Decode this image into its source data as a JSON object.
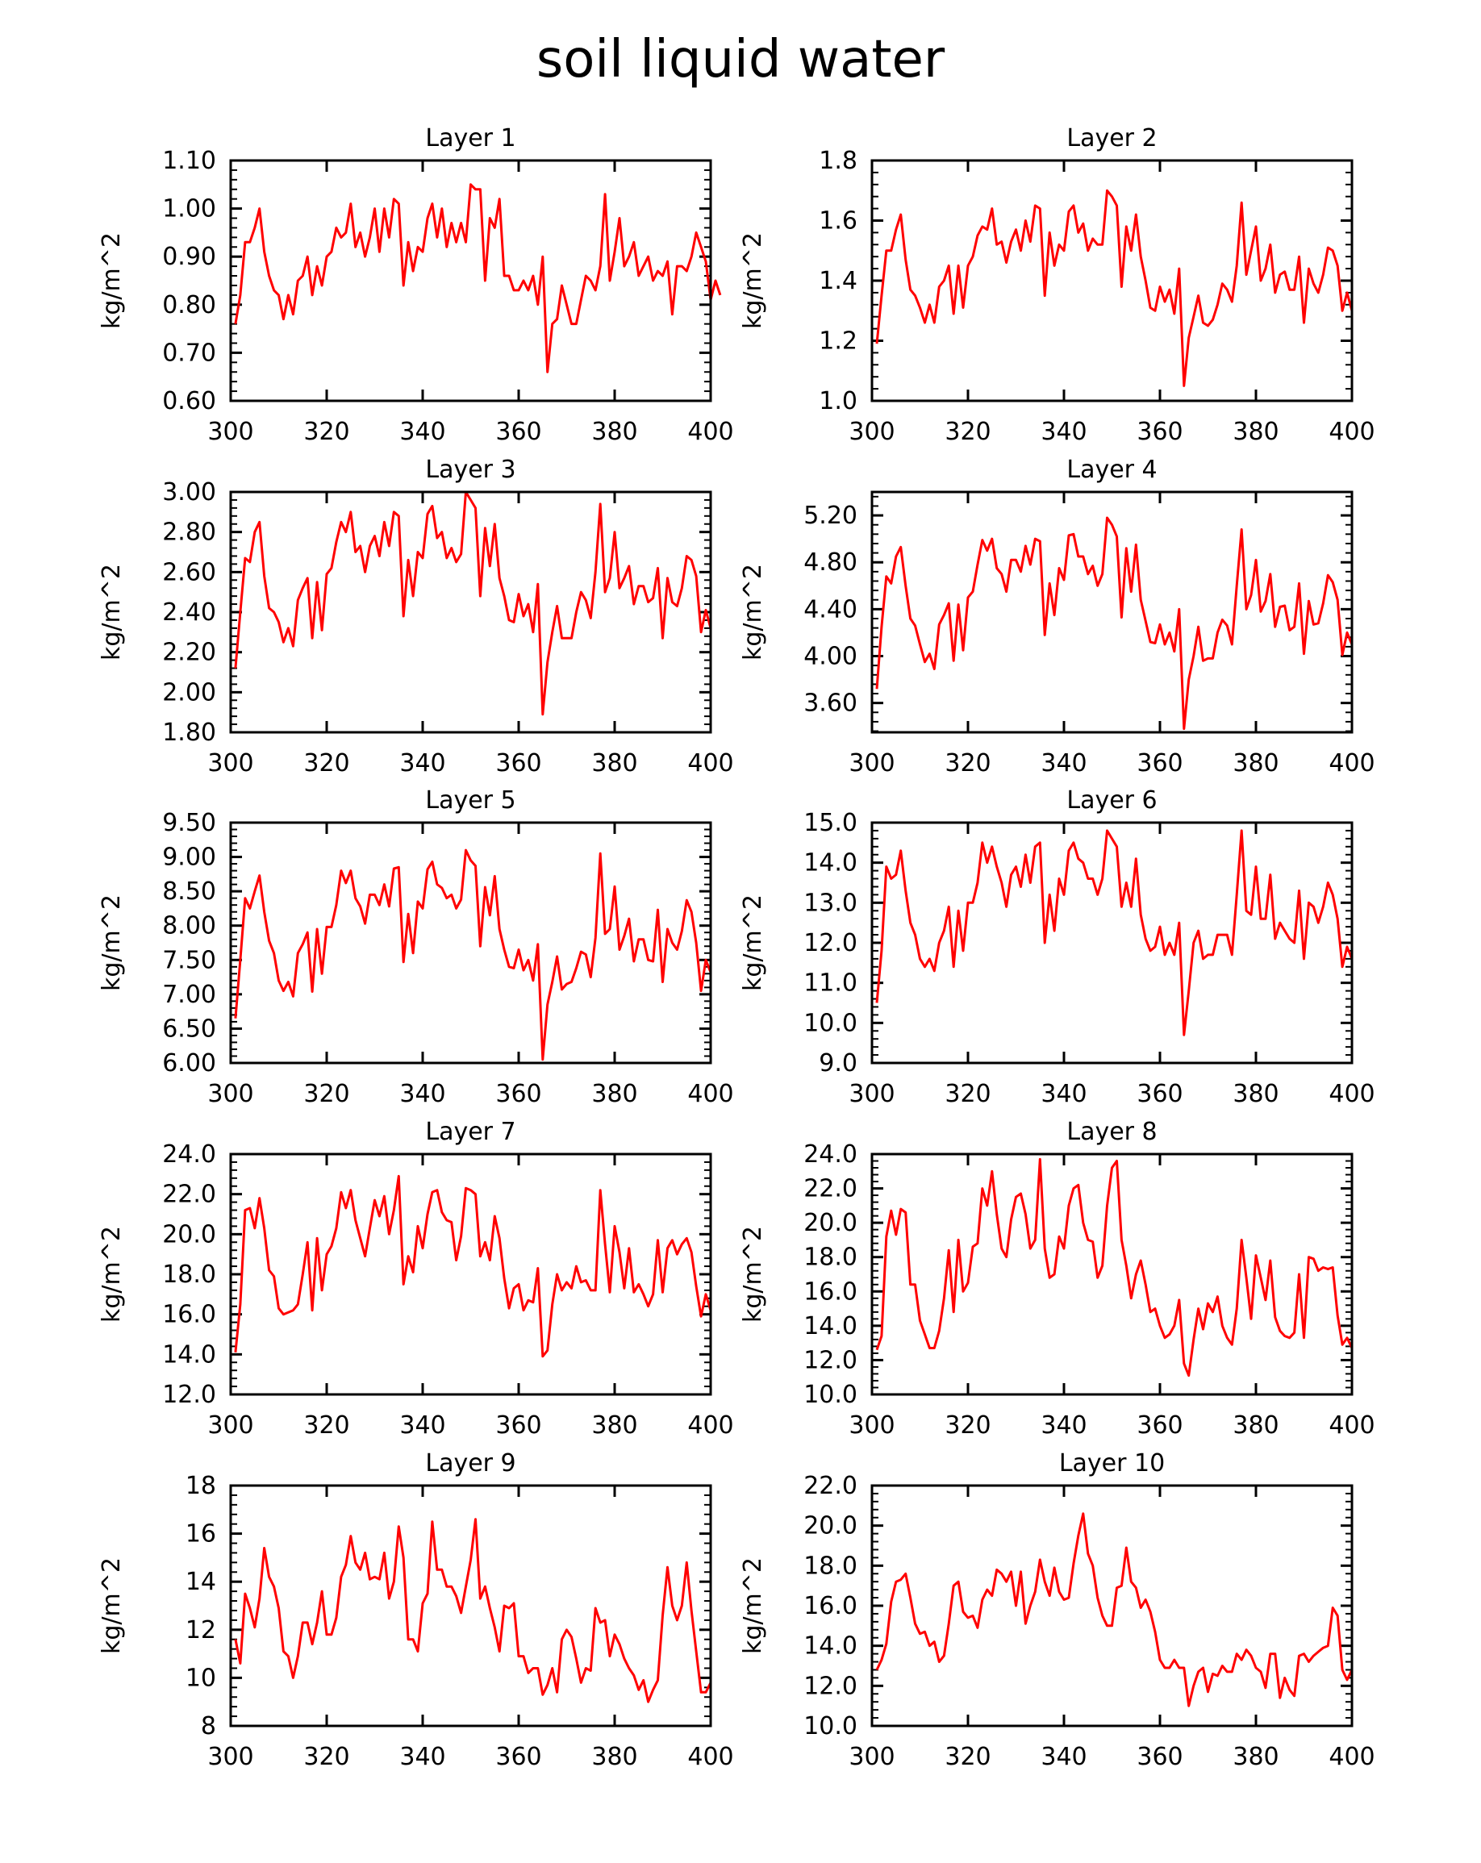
{
  "title": "soil liquid water",
  "colors": {
    "line": "#ff0000",
    "axis": "#000000",
    "background": "#ffffff"
  },
  "chart_data": [
    {
      "type": "line",
      "title": "Layer 1",
      "ylabel": "kg/m^2",
      "xlim": [
        300,
        400
      ],
      "ylim": [
        0.6,
        1.1
      ],
      "xticks": [
        "300",
        "320",
        "340",
        "360",
        "380",
        "400"
      ],
      "yticks": [
        "0.60",
        "0.70",
        "0.80",
        "0.90",
        "1.00",
        "1.10"
      ],
      "x_start": 301,
      "values": [
        0.76,
        0.82,
        0.93,
        0.93,
        0.96,
        1.0,
        0.91,
        0.86,
        0.83,
        0.82,
        0.77,
        0.82,
        0.78,
        0.85,
        0.86,
        0.9,
        0.82,
        0.88,
        0.84,
        0.9,
        0.91,
        0.96,
        0.94,
        0.95,
        1.01,
        0.92,
        0.95,
        0.9,
        0.94,
        1.0,
        0.91,
        1.0,
        0.94,
        1.02,
        1.01,
        0.84,
        0.93,
        0.87,
        0.92,
        0.91,
        0.98,
        1.01,
        0.94,
        1.0,
        0.92,
        0.97,
        0.93,
        0.97,
        0.93,
        1.05,
        1.04,
        1.04,
        0.85,
        0.98,
        0.96,
        1.02,
        0.86,
        0.86,
        0.83,
        0.83,
        0.85,
        0.83,
        0.86,
        0.8,
        0.9,
        0.66,
        0.76,
        0.77,
        0.84,
        0.8,
        0.76,
        0.76,
        0.81,
        0.86,
        0.85,
        0.83,
        0.88,
        1.03,
        0.85,
        0.91,
        0.98,
        0.88,
        0.9,
        0.93,
        0.86,
        0.88,
        0.9,
        0.85,
        0.87,
        0.86,
        0.89,
        0.78,
        0.88,
        0.88,
        0.87,
        0.9,
        0.95,
        0.92,
        0.89,
        0.81,
        0.85,
        0.82
      ]
    },
    {
      "type": "line",
      "title": "Layer 2",
      "ylabel": "kg/m^2",
      "xlim": [
        300,
        400
      ],
      "ylim": [
        1.0,
        1.8
      ],
      "xticks": [
        "300",
        "320",
        "340",
        "360",
        "380",
        "400"
      ],
      "yticks": [
        "1.0",
        "1.2",
        "1.4",
        "1.6",
        "1.8"
      ],
      "x_start": 301,
      "values": [
        1.19,
        1.35,
        1.5,
        1.5,
        1.57,
        1.62,
        1.47,
        1.37,
        1.35,
        1.31,
        1.26,
        1.32,
        1.26,
        1.38,
        1.4,
        1.45,
        1.29,
        1.45,
        1.31,
        1.45,
        1.48,
        1.55,
        1.58,
        1.57,
        1.64,
        1.52,
        1.53,
        1.46,
        1.53,
        1.57,
        1.5,
        1.6,
        1.53,
        1.65,
        1.64,
        1.35,
        1.56,
        1.45,
        1.52,
        1.5,
        1.63,
        1.65,
        1.56,
        1.59,
        1.5,
        1.54,
        1.52,
        1.52,
        1.7,
        1.68,
        1.65,
        1.38,
        1.58,
        1.5,
        1.62,
        1.48,
        1.4,
        1.31,
        1.3,
        1.38,
        1.33,
        1.37,
        1.29,
        1.44,
        1.05,
        1.21,
        1.28,
        1.35,
        1.26,
        1.25,
        1.27,
        1.32,
        1.39,
        1.37,
        1.33,
        1.45,
        1.66,
        1.42,
        1.5,
        1.58,
        1.4,
        1.44,
        1.52,
        1.36,
        1.42,
        1.43,
        1.37,
        1.37,
        1.48,
        1.26,
        1.44,
        1.39,
        1.36,
        1.42,
        1.51,
        1.5,
        1.45,
        1.3,
        1.36,
        1.3
      ]
    },
    {
      "type": "line",
      "title": "Layer 3",
      "ylabel": "kg/m^2",
      "xlim": [
        300,
        400
      ],
      "ylim": [
        1.8,
        3.0
      ],
      "xticks": [
        "300",
        "320",
        "340",
        "360",
        "380",
        "400"
      ],
      "yticks": [
        "1.80",
        "2.00",
        "2.20",
        "2.40",
        "2.60",
        "2.80",
        "3.00"
      ],
      "x_start": 301,
      "values": [
        2.12,
        2.4,
        2.67,
        2.65,
        2.8,
        2.85,
        2.58,
        2.42,
        2.4,
        2.35,
        2.25,
        2.32,
        2.23,
        2.46,
        2.52,
        2.57,
        2.27,
        2.55,
        2.31,
        2.59,
        2.62,
        2.75,
        2.85,
        2.8,
        2.9,
        2.7,
        2.73,
        2.6,
        2.73,
        2.78,
        2.68,
        2.85,
        2.73,
        2.9,
        2.88,
        2.38,
        2.66,
        2.48,
        2.7,
        2.67,
        2.89,
        2.93,
        2.77,
        2.8,
        2.67,
        2.72,
        2.65,
        2.69,
        3.0,
        2.96,
        2.92,
        2.48,
        2.82,
        2.63,
        2.84,
        2.57,
        2.48,
        2.36,
        2.35,
        2.49,
        2.38,
        2.44,
        2.3,
        2.54,
        1.89,
        2.15,
        2.3,
        2.43,
        2.27,
        2.27,
        2.27,
        2.4,
        2.5,
        2.46,
        2.37,
        2.6,
        2.94,
        2.5,
        2.57,
        2.8,
        2.52,
        2.57,
        2.63,
        2.44,
        2.53,
        2.53,
        2.45,
        2.47,
        2.62,
        2.27,
        2.57,
        2.45,
        2.43,
        2.52,
        2.68,
        2.66,
        2.58,
        2.3,
        2.41,
        2.32
      ]
    },
    {
      "type": "line",
      "title": "Layer 4",
      "ylabel": "kg/m^2",
      "xlim": [
        300,
        400
      ],
      "ylim": [
        3.35,
        5.4
      ],
      "xticks": [
        "300",
        "320",
        "340",
        "360",
        "380",
        "400"
      ],
      "yticks": [
        "3.60",
        "4.00",
        "4.40",
        "4.80",
        "5.20"
      ],
      "x_start": 301,
      "values": [
        3.72,
        4.25,
        4.68,
        4.62,
        4.85,
        4.93,
        4.6,
        4.32,
        4.26,
        4.1,
        3.95,
        4.02,
        3.89,
        4.27,
        4.35,
        4.45,
        3.96,
        4.44,
        4.05,
        4.5,
        4.55,
        4.78,
        4.99,
        4.9,
        5.0,
        4.75,
        4.7,
        4.55,
        4.82,
        4.82,
        4.72,
        4.94,
        4.78,
        5.0,
        4.98,
        4.18,
        4.62,
        4.35,
        4.75,
        4.65,
        5.03,
        5.04,
        4.85,
        4.85,
        4.7,
        4.77,
        4.6,
        4.7,
        5.18,
        5.12,
        5.02,
        4.33,
        4.92,
        4.55,
        4.95,
        4.48,
        4.3,
        4.12,
        4.11,
        4.27,
        4.1,
        4.2,
        4.04,
        4.4,
        3.38,
        3.8,
        4.0,
        4.25,
        3.96,
        3.98,
        3.98,
        4.2,
        4.31,
        4.26,
        4.1,
        4.6,
        5.08,
        4.4,
        4.52,
        4.82,
        4.38,
        4.47,
        4.7,
        4.25,
        4.42,
        4.43,
        4.22,
        4.25,
        4.62,
        4.02,
        4.47,
        4.27,
        4.28,
        4.45,
        4.69,
        4.63,
        4.48,
        4.01,
        4.2,
        4.1
      ]
    },
    {
      "type": "line",
      "title": "Layer 5",
      "ylabel": "kg/m^2",
      "xlim": [
        300,
        400
      ],
      "ylim": [
        6.0,
        9.5
      ],
      "xticks": [
        "300",
        "320",
        "340",
        "360",
        "380",
        "400"
      ],
      "yticks": [
        "6.00",
        "6.50",
        "7.00",
        "7.50",
        "8.00",
        "8.50",
        "9.00",
        "9.50"
      ],
      "x_start": 301,
      "values": [
        6.65,
        7.5,
        8.4,
        8.25,
        8.5,
        8.73,
        8.2,
        7.78,
        7.6,
        7.2,
        7.05,
        7.18,
        6.97,
        7.6,
        7.73,
        7.9,
        7.04,
        7.95,
        7.3,
        7.98,
        7.98,
        8.3,
        8.8,
        8.62,
        8.8,
        8.4,
        8.28,
        8.03,
        8.45,
        8.45,
        8.3,
        8.6,
        8.28,
        8.83,
        8.85,
        7.47,
        8.17,
        7.6,
        8.35,
        8.25,
        8.82,
        8.93,
        8.6,
        8.55,
        8.4,
        8.45,
        8.25,
        8.38,
        9.1,
        8.95,
        8.87,
        7.7,
        8.56,
        8.15,
        8.72,
        7.95,
        7.65,
        7.4,
        7.38,
        7.65,
        7.35,
        7.5,
        7.2,
        7.73,
        6.05,
        6.85,
        7.18,
        7.55,
        7.07,
        7.15,
        7.18,
        7.38,
        7.62,
        7.58,
        7.25,
        7.82,
        9.05,
        7.88,
        7.95,
        8.57,
        7.65,
        7.85,
        8.1,
        7.48,
        7.8,
        7.8,
        7.5,
        7.48,
        8.23,
        7.18,
        7.95,
        7.75,
        7.65,
        7.92,
        8.37,
        8.2,
        7.75,
        7.05,
        7.5,
        7.32
      ]
    },
    {
      "type": "line",
      "title": "Layer 6",
      "ylabel": "kg/m^2",
      "xlim": [
        300,
        400
      ],
      "ylim": [
        9.0,
        15.0
      ],
      "xticks": [
        "300",
        "320",
        "340",
        "360",
        "380",
        "400"
      ],
      "yticks": [
        "9.0",
        "10.0",
        "11.0",
        "12.0",
        "13.0",
        "14.0",
        "15.0"
      ],
      "x_start": 301,
      "values": [
        10.5,
        11.8,
        13.9,
        13.6,
        13.7,
        14.3,
        13.3,
        12.5,
        12.2,
        11.6,
        11.4,
        11.6,
        11.3,
        12.0,
        12.3,
        12.9,
        11.4,
        12.8,
        11.8,
        13.0,
        13.0,
        13.5,
        14.5,
        14.0,
        14.4,
        13.9,
        13.5,
        12.9,
        13.7,
        13.9,
        13.4,
        14.2,
        13.5,
        14.4,
        14.5,
        12.0,
        13.2,
        12.3,
        13.6,
        13.2,
        14.3,
        14.5,
        14.1,
        14.0,
        13.6,
        13.6,
        13.2,
        13.6,
        14.8,
        14.6,
        14.4,
        12.9,
        13.5,
        12.9,
        14.1,
        12.7,
        12.1,
        11.8,
        11.9,
        12.4,
        11.7,
        12.0,
        11.7,
        12.5,
        9.7,
        10.8,
        12.0,
        12.3,
        11.6,
        11.7,
        11.7,
        12.2,
        12.2,
        12.2,
        11.7,
        13.2,
        14.8,
        12.8,
        12.7,
        13.9,
        12.6,
        12.6,
        13.7,
        12.1,
        12.5,
        12.3,
        12.1,
        12.0,
        13.3,
        11.6,
        13.0,
        12.9,
        12.5,
        12.9,
        13.5,
        13.2,
        12.6,
        11.4,
        11.9,
        11.6
      ]
    },
    {
      "type": "line",
      "title": "Layer 7",
      "ylabel": "kg/m^2",
      "xlim": [
        300,
        400
      ],
      "ylim": [
        12.0,
        24.0
      ],
      "xticks": [
        "300",
        "320",
        "340",
        "360",
        "380",
        "400"
      ],
      "yticks": [
        "12.0",
        "14.0",
        "16.0",
        "18.0",
        "20.0",
        "22.0",
        "24.0"
      ],
      "x_start": 301,
      "values": [
        14.1,
        16.5,
        21.2,
        21.3,
        20.3,
        21.8,
        20.3,
        18.2,
        17.9,
        16.3,
        16.0,
        16.1,
        16.2,
        16.5,
        18.0,
        19.6,
        16.2,
        19.8,
        17.2,
        19.0,
        19.4,
        20.3,
        22.1,
        21.3,
        22.2,
        20.7,
        19.8,
        18.9,
        20.3,
        21.7,
        20.9,
        21.9,
        20.0,
        21.2,
        22.9,
        17.5,
        18.9,
        18.1,
        20.4,
        19.3,
        21.0,
        22.1,
        22.2,
        21.1,
        20.7,
        20.6,
        18.7,
        19.9,
        22.3,
        22.2,
        22.0,
        18.9,
        19.6,
        18.7,
        20.9,
        19.8,
        17.8,
        16.3,
        17.3,
        17.5,
        16.2,
        16.7,
        16.6,
        18.3,
        13.9,
        14.2,
        16.5,
        18.0,
        17.2,
        17.6,
        17.3,
        18.4,
        17.6,
        17.7,
        17.2,
        17.2,
        22.2,
        19.5,
        17.1,
        20.4,
        19.1,
        17.3,
        19.3,
        17.1,
        17.5,
        17.0,
        16.4,
        17.0,
        19.7,
        17.1,
        19.3,
        19.7,
        19.0,
        19.5,
        19.8,
        19.1,
        17.4,
        15.9,
        17.0,
        16.2
      ]
    },
    {
      "type": "line",
      "title": "Layer 8",
      "ylabel": "kg/m^2",
      "xlim": [
        300,
        400
      ],
      "ylim": [
        10.0,
        24.0
      ],
      "xticks": [
        "300",
        "320",
        "340",
        "360",
        "380",
        "400"
      ],
      "yticks": [
        "10.0",
        "12.0",
        "14.0",
        "16.0",
        "18.0",
        "20.0",
        "22.0",
        "24.0"
      ],
      "x_start": 301,
      "values": [
        12.6,
        13.4,
        19.2,
        20.7,
        19.3,
        20.8,
        20.6,
        16.4,
        16.4,
        14.3,
        13.5,
        12.7,
        12.7,
        13.7,
        15.6,
        18.4,
        14.8,
        19.0,
        16.0,
        16.5,
        18.6,
        18.8,
        22.0,
        21.0,
        23.0,
        20.5,
        18.5,
        18.0,
        20.2,
        21.5,
        21.7,
        20.5,
        18.5,
        19.0,
        23.7,
        18.5,
        16.8,
        17.0,
        19.2,
        18.5,
        21.0,
        22.0,
        22.2,
        20.0,
        19.0,
        18.9,
        16.8,
        17.5,
        21.0,
        23.2,
        23.6,
        19.0,
        17.5,
        15.6,
        17.0,
        17.8,
        16.4,
        14.8,
        15.0,
        14.0,
        13.3,
        13.5,
        14.0,
        15.5,
        11.8,
        11.1,
        13.2,
        15.0,
        13.8,
        15.3,
        14.8,
        15.7,
        14.0,
        13.3,
        12.9,
        15.0,
        19.0,
        16.8,
        14.4,
        18.1,
        16.8,
        15.5,
        17.8,
        14.5,
        13.7,
        13.4,
        13.3,
        13.6,
        17.0,
        13.3,
        18.0,
        17.9,
        17.2,
        17.4,
        17.3,
        17.4,
        14.6,
        12.9,
        13.3,
        12.7
      ]
    },
    {
      "type": "line",
      "title": "Layer 9",
      "ylabel": "kg/m^2",
      "xlim": [
        300,
        400
      ],
      "ylim": [
        8,
        18
      ],
      "xticks": [
        "300",
        "320",
        "340",
        "360",
        "380",
        "400"
      ],
      "yticks": [
        "8",
        "10",
        "12",
        "14",
        "16",
        "18"
      ],
      "x_start": 301,
      "values": [
        11.6,
        10.6,
        13.5,
        12.9,
        12.1,
        13.3,
        15.4,
        14.2,
        13.8,
        12.9,
        11.1,
        10.9,
        10.0,
        10.9,
        12.3,
        12.3,
        11.4,
        12.3,
        13.6,
        11.8,
        11.8,
        12.5,
        14.2,
        14.7,
        15.9,
        14.8,
        14.5,
        15.2,
        14.1,
        14.2,
        14.1,
        15.2,
        13.3,
        14.0,
        16.3,
        15.0,
        11.6,
        11.6,
        11.1,
        13.1,
        13.5,
        16.5,
        14.5,
        14.5,
        13.8,
        13.8,
        13.4,
        12.7,
        13.8,
        14.9,
        16.6,
        13.3,
        13.8,
        12.9,
        12.1,
        11.1,
        13.0,
        12.9,
        13.1,
        10.9,
        10.9,
        10.2,
        10.4,
        10.4,
        9.3,
        9.7,
        10.4,
        9.4,
        11.6,
        12.0,
        11.7,
        10.8,
        9.8,
        10.4,
        10.3,
        12.9,
        12.3,
        12.4,
        10.9,
        11.8,
        11.4,
        10.8,
        10.4,
        10.1,
        9.5,
        9.9,
        9.0,
        9.5,
        9.9,
        12.6,
        14.6,
        13.0,
        12.4,
        13.0,
        14.8,
        12.8,
        11.1,
        9.4,
        9.4,
        9.8
      ]
    },
    {
      "type": "line",
      "title": "Layer 10",
      "ylabel": "kg/m^2",
      "xlim": [
        300,
        400
      ],
      "ylim": [
        10.0,
        22.0
      ],
      "xticks": [
        "300",
        "320",
        "340",
        "360",
        "380",
        "400"
      ],
      "yticks": [
        "10.0",
        "12.0",
        "14.0",
        "16.0",
        "18.0",
        "20.0",
        "22.0"
      ],
      "x_start": 301,
      "values": [
        12.8,
        13.3,
        14.1,
        16.2,
        17.2,
        17.3,
        17.6,
        16.4,
        15.1,
        14.6,
        14.7,
        14.0,
        14.2,
        13.2,
        13.5,
        15.1,
        17.0,
        17.2,
        15.7,
        15.4,
        15.5,
        14.9,
        16.3,
        16.8,
        16.5,
        17.8,
        17.6,
        17.2,
        17.7,
        16.0,
        17.7,
        15.1,
        16.0,
        16.7,
        18.3,
        17.2,
        16.5,
        17.9,
        16.7,
        16.3,
        16.4,
        18.1,
        19.5,
        20.6,
        18.6,
        18.0,
        16.4,
        15.5,
        15.0,
        15.0,
        16.9,
        17.0,
        18.9,
        17.2,
        16.9,
        15.9,
        16.3,
        15.7,
        14.7,
        13.3,
        12.9,
        12.9,
        13.3,
        12.9,
        12.9,
        11.0,
        12.0,
        12.7,
        12.9,
        11.7,
        12.6,
        12.5,
        13.0,
        12.7,
        12.7,
        13.6,
        13.3,
        13.8,
        13.5,
        12.9,
        12.7,
        11.9,
        13.6,
        13.6,
        11.4,
        12.4,
        11.8,
        11.5,
        13.5,
        13.6,
        13.2,
        13.5,
        13.7,
        13.9,
        14.0,
        15.9,
        15.5,
        12.8,
        12.3,
        12.8
      ]
    }
  ]
}
